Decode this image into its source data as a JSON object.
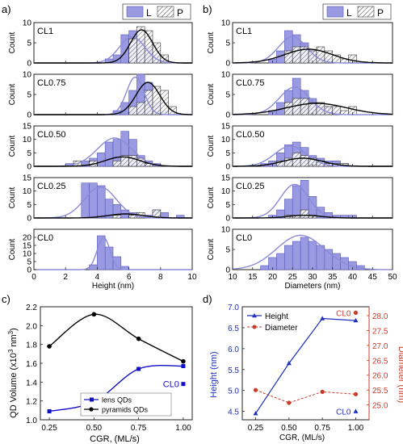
{
  "panel_labels": [
    "a)",
    "b)",
    "c)",
    "d)"
  ],
  "legend_ab": {
    "lens": "L",
    "pyramid": "P"
  },
  "colors": {
    "lens_fill": "#9a9ae3",
    "lens_edge": "#5858b8",
    "lens_curve": "#8a8ad8",
    "pyr_curve": "#000000",
    "height_series": "#1f2fbf",
    "diameter_series": "#c83a2a",
    "c_lens": "#1010c8"
  },
  "chart_data": [
    {
      "id": "a",
      "type": "bar",
      "title": "",
      "xlabel": "Height (nm)",
      "ylabel": "Count",
      "xlim": [
        0,
        10
      ],
      "x_ticks": [
        "0",
        "2",
        "4",
        "6",
        "8",
        "10"
      ],
      "bin_width": 0.5,
      "panels": [
        {
          "name": "CL1",
          "ylim": [
            0,
            10
          ],
          "y_ticks": [
            "0",
            "5",
            "10"
          ],
          "lens": {
            "x": [
              4.5,
              5.0,
              5.5,
              6.0,
              6.5,
              7.0,
              7.5,
              8.0
            ],
            "values": [
              1,
              2,
              7,
              8,
              6,
              4,
              2,
              1
            ]
          },
          "pyramid": {
            "x": [
              6.0,
              6.5,
              7.0,
              7.5,
              8.0
            ],
            "values": [
              6,
              9,
              8,
              5,
              2
            ]
          },
          "lens_fit": {
            "mu": 6.2,
            "sigma": 0.8,
            "amp": 6.5
          },
          "pyr_fit": {
            "mu": 6.8,
            "sigma": 0.7,
            "amp": 8.2
          }
        },
        {
          "name": "CL0.75",
          "ylim": [
            0,
            10
          ],
          "y_ticks": [
            "0",
            "5",
            "10"
          ],
          "lens": {
            "x": [
              5.0,
              5.5,
              6.0,
              6.5,
              7.0,
              7.5,
              8.0
            ],
            "values": [
              1,
              3,
              6,
              10,
              8,
              3,
              1
            ]
          },
          "pyramid": {
            "x": [
              6.0,
              6.5,
              7.0,
              7.5,
              8.0,
              8.5
            ],
            "values": [
              2,
              3,
              6,
              7,
              6,
              2
            ]
          },
          "lens_fit": {
            "mu": 6.4,
            "sigma": 0.55,
            "amp": 9.3
          },
          "pyr_fit": {
            "mu": 7.2,
            "sigma": 0.75,
            "amp": 8.0
          }
        },
        {
          "name": "CL0.50",
          "ylim": [
            0,
            15
          ],
          "y_ticks": [
            "0",
            "5",
            "10",
            "15"
          ],
          "lens": {
            "x": [
              2.0,
              3.0,
              3.5,
              4.0,
              4.5,
              5.0,
              5.5,
              6.0,
              6.5,
              7.0,
              7.5
            ],
            "values": [
              1,
              2,
              3,
              5,
              9,
              10,
              13,
              10,
              4,
              2,
              1
            ]
          },
          "pyramid": {
            "x": [
              2.5,
              3.5,
              5.0,
              5.5,
              6.0,
              6.5,
              7.0
            ],
            "values": [
              2,
              2,
              2,
              4,
              4,
              3,
              1
            ]
          },
          "lens_fit": {
            "mu": 5.1,
            "sigma": 1.1,
            "amp": 10.5
          },
          "pyr_fit": {
            "mu": 5.6,
            "sigma": 1.1,
            "amp": 3.5
          }
        },
        {
          "name": "CL0.25",
          "ylim": [
            0,
            15
          ],
          "y_ticks": [
            "0",
            "5",
            "10",
            "15"
          ],
          "lens": {
            "x": [
              3.0,
              3.5,
              4.0,
              4.5,
              5.0,
              5.5,
              6.0,
              6.5,
              7.0,
              7.5,
              8.0,
              9.0
            ],
            "values": [
              13,
              13,
              12,
              7,
              5,
              3,
              2,
              1,
              1,
              3,
              2,
              1
            ]
          },
          "pyramid": {
            "x": [
              5.0,
              6.0,
              6.5,
              7.5
            ],
            "values": [
              1,
              1,
              2,
              3
            ]
          },
          "lens_fit": {
            "mu": 4.2,
            "sigma": 1.0,
            "amp": 11.5
          },
          "pyr_fit": {
            "mu": 5.8,
            "sigma": 1.1,
            "amp": 1.5
          }
        },
        {
          "name": "CL0",
          "ylim": [
            0,
            25
          ],
          "y_ticks": [
            "0",
            "5",
            "10",
            "15",
            "20"
          ],
          "lens": {
            "x": [
              3.5,
              4.0,
              4.5,
              5.0,
              5.5
            ],
            "values": [
              3,
              21,
              14,
              8,
              2
            ]
          },
          "pyramid": null,
          "lens_fit": {
            "mu": 4.4,
            "sigma": 0.4,
            "amp": 20.0
          },
          "pyr_fit": null
        }
      ]
    },
    {
      "id": "b",
      "type": "bar",
      "title": "",
      "xlabel": "Diameters (nm)",
      "ylabel": "Count",
      "xlim": [
        10,
        50
      ],
      "x_ticks": [
        "10",
        "15",
        "20",
        "25",
        "30",
        "35",
        "40",
        "45",
        "50"
      ],
      "bin_width": 2.0,
      "panels": [
        {
          "name": "CL1",
          "ylim": [
            0,
            10
          ],
          "y_ticks": [
            "0",
            "5",
            "10"
          ],
          "lens": {
            "x": [
              19,
              21,
              23,
              25,
              27,
              29,
              31,
              33
            ],
            "values": [
              1,
              3,
              8,
              7,
              5,
              3,
              2,
              1
            ]
          },
          "pyramid": {
            "x": [
              23,
              25,
              27,
              29,
              31,
              33,
              35,
              37,
              39
            ],
            "values": [
              3,
              4,
              4,
              3,
              4,
              3,
              2,
              1,
              2
            ]
          },
          "lens_fit": {
            "mu": 25.0,
            "sigma": 3.5,
            "amp": 6.5
          },
          "pyr_fit": {
            "mu": 29.0,
            "sigma": 6.0,
            "amp": 3.4
          }
        },
        {
          "name": "CL0.75",
          "ylim": [
            0,
            10
          ],
          "y_ticks": [
            "0",
            "5",
            "10"
          ],
          "lens": {
            "x": [
              19,
              21,
              23,
              25,
              27,
              29,
              31,
              33,
              35
            ],
            "values": [
              1,
              3,
              6,
              9,
              6,
              4,
              2,
              2,
              1
            ]
          },
          "pyramid": {
            "x": [
              23,
              25,
              27,
              29,
              31,
              33,
              35,
              37,
              39
            ],
            "values": [
              3,
              4,
              4,
              3,
              3,
              2,
              2,
              1,
              2
            ]
          },
          "lens_fit": {
            "mu": 25.5,
            "sigma": 3.8,
            "amp": 6.8
          },
          "pyr_fit": {
            "mu": 31.0,
            "sigma": 7.5,
            "amp": 2.8
          }
        },
        {
          "name": "CL0.50",
          "ylim": [
            0,
            15
          ],
          "y_ticks": [
            "0",
            "5",
            "10",
            "15"
          ],
          "lens": {
            "x": [
              17,
              19,
              21,
              23,
              25,
              27,
              29,
              31,
              33,
              35,
              37
            ],
            "values": [
              1,
              2,
              5,
              8,
              9,
              7,
              4,
              3,
              2,
              2,
              1
            ]
          },
          "pyramid": {
            "x": [
              21,
              23,
              25,
              27,
              29,
              31,
              33,
              35,
              37
            ],
            "values": [
              2,
              3,
              5,
              4,
              3,
              2,
              1,
              1,
              1
            ]
          },
          "lens_fit": {
            "mu": 24.5,
            "sigma": 4.0,
            "amp": 7.5
          },
          "pyr_fit": {
            "mu": 27.5,
            "sigma": 5.0,
            "amp": 3.0
          }
        },
        {
          "name": "CL0.25",
          "ylim": [
            0,
            15
          ],
          "y_ticks": [
            "0",
            "5",
            "10",
            "15"
          ],
          "lens": {
            "x": [
              19,
              21,
              23,
              25,
              27,
              29,
              31,
              33,
              35,
              37,
              39
            ],
            "values": [
              1,
              3,
              7,
              12,
              14,
              8,
              4,
              2,
              1,
              1,
              1
            ]
          },
          "pyramid": {
            "x": [
              23,
              25,
              27,
              29
            ],
            "values": [
              1,
              1,
              3,
              1
            ]
          },
          "lens_fit": {
            "mu": 25.5,
            "sigma": 3.5,
            "amp": 12.5
          },
          "pyr_fit": {
            "mu": 28.0,
            "sigma": 4.0,
            "amp": 1.0
          }
        },
        {
          "name": "CL0",
          "ylim": [
            0,
            10
          ],
          "y_ticks": [
            "0",
            "5",
            "10"
          ],
          "lens": {
            "x": [
              17,
              19,
              21,
              23,
              25,
              27,
              29,
              31,
              33,
              35,
              37,
              39,
              41
            ],
            "values": [
              1,
              3,
              4,
              6,
              7,
              8,
              7,
              6,
              5,
              4,
              3,
              2,
              1
            ]
          },
          "pyramid": null,
          "lens_fit": {
            "mu": 27.0,
            "sigma": 6.0,
            "amp": 8.5
          },
          "pyr_fit": null
        }
      ]
    },
    {
      "id": "c",
      "type": "line",
      "title": "",
      "xlabel": "CGR, (ML/s)",
      "ylabel_main": "QD Volume (x10",
      "ylabel_sup1": "3",
      "ylabel_mid": " nm",
      "ylabel_sup2": "3",
      "ylabel_end": ")",
      "xlim": [
        0.2,
        1.05
      ],
      "ylim": [
        1.0,
        2.2
      ],
      "x_ticks": [
        0.25,
        0.5,
        0.75,
        1.0
      ],
      "x_tick_labels": [
        "0.25",
        "0.50",
        "0.75",
        "1.00"
      ],
      "y_ticks": [
        1.0,
        1.2,
        1.4,
        1.6,
        1.8,
        2.0,
        2.2
      ],
      "y_tick_labels": [
        "1.0",
        "1.2",
        "1.4",
        "1.6",
        "1.8",
        "2.0",
        "2.2"
      ],
      "series": [
        {
          "name": "lens QDs",
          "x": [
            0.25,
            0.5,
            0.75,
            1.0
          ],
          "values": [
            1.09,
            1.19,
            1.54,
            1.57
          ]
        },
        {
          "name": "pyramids QDs",
          "x": [
            0.25,
            0.5,
            0.75,
            1.0
          ],
          "values": [
            1.78,
            2.12,
            1.86,
            1.62
          ]
        }
      ],
      "extra_point": {
        "label": "CL0",
        "x": 1.0,
        "value": 1.38
      }
    },
    {
      "id": "d",
      "type": "line",
      "title": "",
      "xlabel": "CGR, (ML/s)",
      "ylabel_left": "Height (nm)",
      "ylabel_right": "Diameter (nm)",
      "xlim": [
        0.15,
        1.1
      ],
      "ylim_left": [
        4.3,
        7.0
      ],
      "ylim_right": [
        24.5,
        28.3
      ],
      "x_ticks": [
        0.25,
        0.5,
        0.75,
        1.0
      ],
      "x_tick_labels": [
        "0.25",
        "0.50",
        "0.75",
        "1.00"
      ],
      "y_ticks_left": [
        4.5,
        5.0,
        5.5,
        6.0,
        6.5,
        7.0
      ],
      "y_tick_labels_left": [
        "4.5",
        "5.0",
        "5.5",
        "6.0",
        "6.5",
        "7.0"
      ],
      "y_ticks_right": [
        25.0,
        25.5,
        26.0,
        26.5,
        27.0,
        27.5,
        28.0
      ],
      "y_tick_labels_right": [
        "25.0",
        "25.5",
        "26.0",
        "26.5",
        "27.0",
        "27.5",
        "28.0"
      ],
      "series": [
        {
          "name": "Height",
          "axis": "left",
          "x": [
            0.25,
            0.5,
            0.75,
            1.0
          ],
          "values": [
            4.45,
            5.65,
            6.72,
            6.67
          ]
        },
        {
          "name": "Diameter",
          "axis": "right",
          "x": [
            0.25,
            0.5,
            0.75,
            1.0
          ],
          "values": [
            25.5,
            25.07,
            25.44,
            25.36
          ]
        }
      ],
      "extra_points": [
        {
          "label": "CL0",
          "axis": "right",
          "x": 1.0,
          "value": 28.1
        },
        {
          "label": "CL0",
          "axis": "left",
          "x": 1.0,
          "value": 4.5
        }
      ]
    }
  ]
}
